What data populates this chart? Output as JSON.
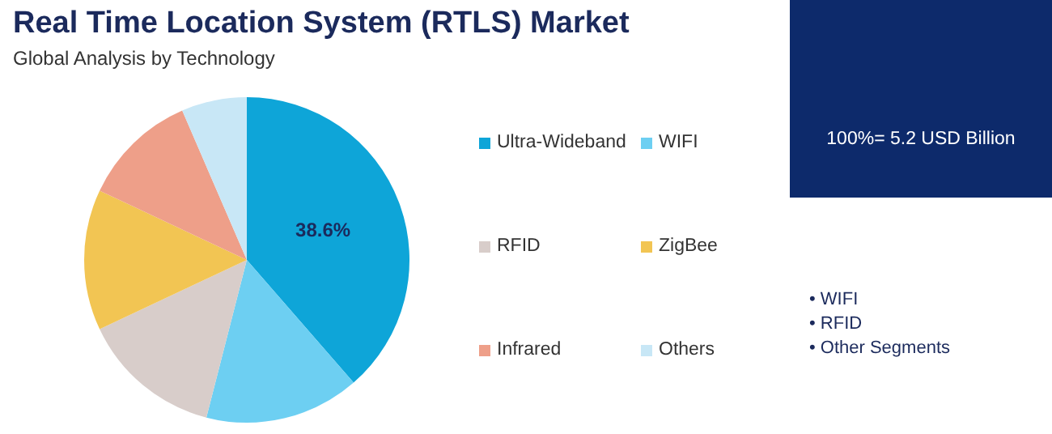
{
  "chart_data": {
    "type": "pie",
    "title": "Real Time Location System (RTLS) Market",
    "subtitle": "Global Analysis by Technology",
    "categories": [
      "Ultra-Wideband",
      "WIFI",
      "RFID",
      "ZigBee",
      "Infrared",
      "Others"
    ],
    "values": [
      38.6,
      15.4,
      14,
      14,
      11.5,
      6.5
    ],
    "colors": [
      "#0ea5d8",
      "#6dcff2",
      "#d8cdca",
      "#f2c553",
      "#ee9f89",
      "#c8e7f6"
    ],
    "value_labels": [
      "38.6%",
      null,
      null,
      null,
      null,
      null
    ],
    "legend": "right",
    "annotations": [
      "100%= 5.2 USD Billion",
      "• WIFI",
      "• RFID",
      "• Other Segments"
    ]
  }
}
